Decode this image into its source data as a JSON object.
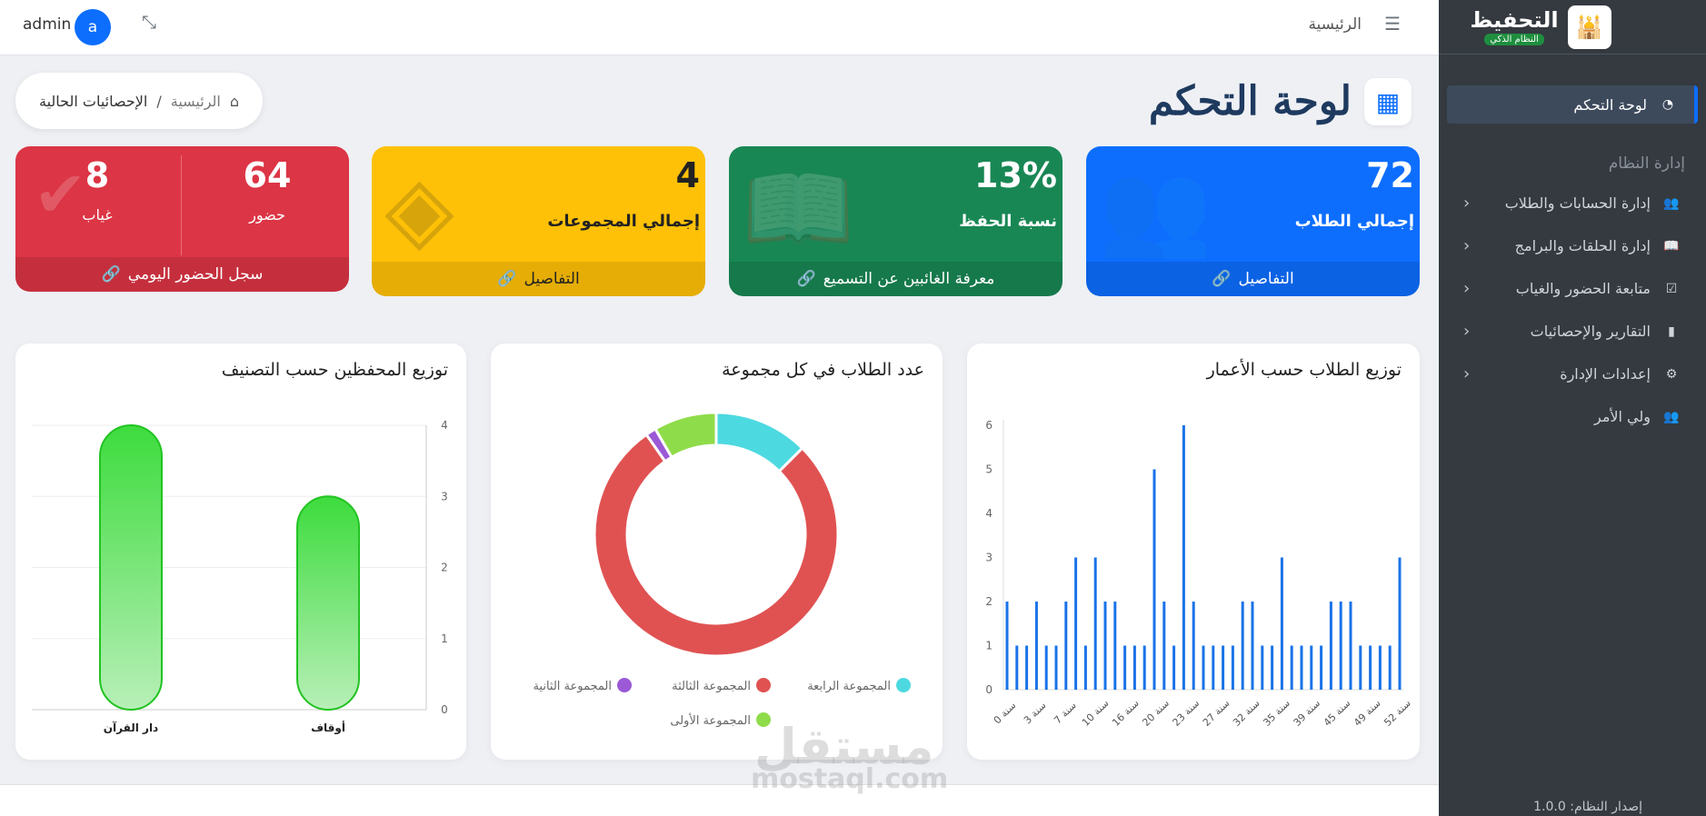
{
  "sidebar": {
    "brand_title": "التحفيظ",
    "brand_badge": "النظام الذكي",
    "active_item": "لوحة التحكم",
    "section_header": "إدارة النظام",
    "items": [
      {
        "label": "إدارة الحسابات والطلاب",
        "icon": "users-icon"
      },
      {
        "label": "إدارة الحلقات والبرامج",
        "icon": "book-icon"
      },
      {
        "label": "متابعة الحضور والغياب",
        "icon": "calendar-check-icon"
      },
      {
        "label": "التقارير والإحصائيات",
        "icon": "bar-chart-icon"
      },
      {
        "label": "إعدادات الإدارة",
        "icon": "gear-icon"
      },
      {
        "label": "ولي الأمر",
        "icon": "user-group-icon"
      }
    ],
    "version": "إصدار النظام: 1.0.0"
  },
  "topbar": {
    "home": "الرئيسية",
    "user": "admin",
    "avatar_letter": "a"
  },
  "page": {
    "title": "لوحة التحكم",
    "breadcrumb_home": "الرئيسية",
    "breadcrumb_sep": "/",
    "breadcrumb_current": "الإحصائيات الحالية"
  },
  "cards": {
    "students": {
      "value": "72",
      "label": "إجمالي الطلاب",
      "link": "التفاصيل"
    },
    "memorization": {
      "value": "13%",
      "label": "نسبة الحفظ",
      "link": "معرفة الغائبين عن التسميع"
    },
    "groups": {
      "value": "4",
      "label": "إجمالي المجموعات",
      "link": "التفاصيل"
    },
    "attendance": {
      "present_value": "64",
      "present_label": "حضور",
      "absent_value": "8",
      "absent_label": "غياب",
      "link": "سجل الحضور اليومي"
    }
  },
  "chart_data": [
    {
      "type": "bar",
      "title": "توزيع الطلاب حسب الأعمار",
      "x_tick_labels": [
        "0 سنة",
        "3 سنة",
        "7 سنة",
        "10 سنة",
        "16 سنة",
        "20 سنة",
        "23 سنة",
        "27 سنة",
        "32 سنة",
        "35 سنة",
        "39 سنة",
        "45 سنة",
        "49 سنة",
        "52 سنة"
      ],
      "values": [
        2,
        1,
        1,
        2,
        1,
        1,
        2,
        3,
        1,
        3,
        2,
        2,
        1,
        1,
        1,
        5,
        2,
        1,
        6,
        2,
        1,
        1,
        1,
        1,
        2,
        2,
        1,
        1,
        3,
        1,
        1,
        1,
        1,
        2,
        2,
        2,
        1,
        1,
        1,
        1,
        3
      ],
      "ylim": [
        0,
        6
      ],
      "y_ticks": [
        "0",
        "1",
        "2",
        "3",
        "4",
        "5",
        "6"
      ],
      "color": "#1a73e8"
    },
    {
      "type": "pie",
      "title": "عدد الطلاب في كل مجموعة",
      "categories": [
        "المجموعة الرابعة",
        "المجموعة الثالثة",
        "المجموعة الثانية",
        "المجموعة الأولى"
      ],
      "values": [
        9,
        56,
        1,
        6
      ],
      "colors": [
        "#4dd9e0",
        "#e05252",
        "#9b59d6",
        "#8fdc4a"
      ]
    },
    {
      "type": "bar",
      "title": "توزيع المحفظين حسب التصنيف",
      "categories": [
        "دار القرآن",
        "أوقاف"
      ],
      "values": [
        4,
        3
      ],
      "ylim": [
        0,
        4
      ],
      "y_ticks": [
        "0",
        "1",
        "2",
        "3",
        "4"
      ],
      "color": "#3ddc3d"
    }
  ],
  "watermark": {
    "arabic": "مستقل",
    "latin": "mostaql.com"
  }
}
